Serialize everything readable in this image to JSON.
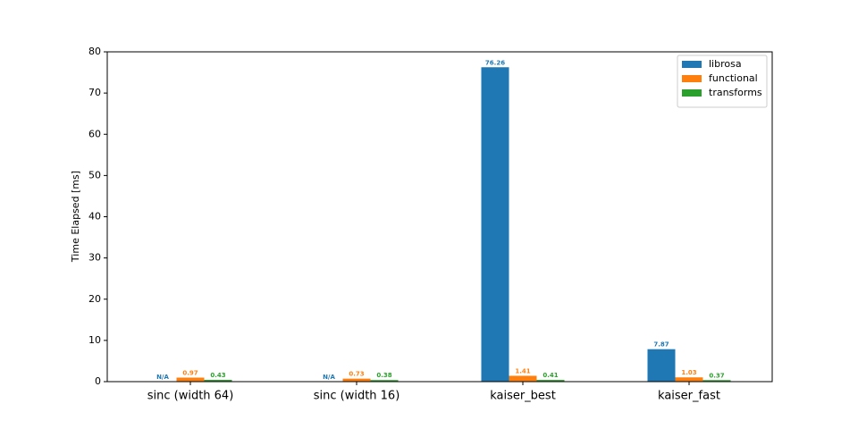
{
  "chart_data": {
    "type": "bar",
    "ylabel": "Time Elapsed [ms]",
    "categories": [
      "sinc (width 64)",
      "sinc (width 16)",
      "kaiser_best",
      "kaiser_fast"
    ],
    "series": [
      {
        "name": "librosa",
        "color": "#1f77b4",
        "values": [
          null,
          null,
          76.26,
          7.87
        ],
        "value_labels": [
          "N/A",
          "N/A",
          "76.26",
          "7.87"
        ]
      },
      {
        "name": "functional",
        "color": "#ff7f0e",
        "values": [
          0.97,
          0.73,
          1.41,
          1.03
        ]
      },
      {
        "name": "transforms",
        "color": "#2ca02c",
        "values": [
          0.43,
          0.38,
          0.41,
          0.37
        ]
      }
    ],
    "ylim": [
      0,
      80
    ],
    "yticks": [
      0,
      10,
      20,
      30,
      40,
      50,
      60,
      70,
      80
    ],
    "grid": false,
    "legend": "upper right"
  }
}
